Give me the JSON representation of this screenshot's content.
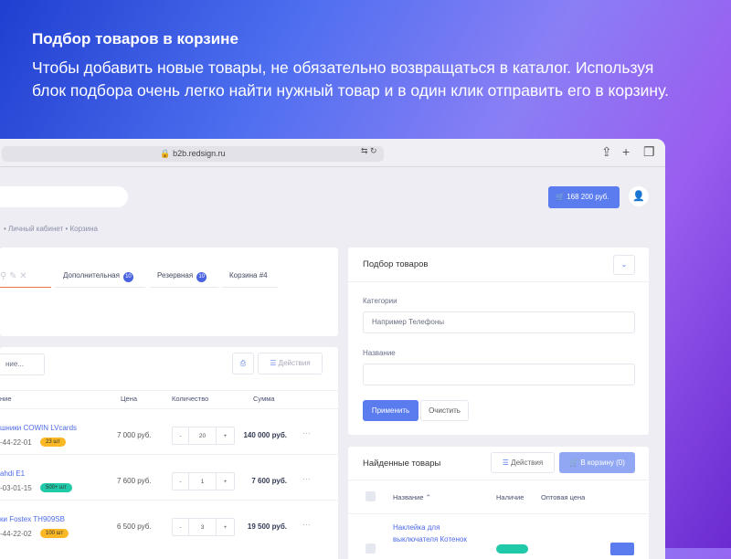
{
  "hero": {
    "title": "Подбор товаров в корзине",
    "text": "Чтобы добавить новые товары, не обязательно возвращаться в каталог. Используя блок подбора очень легко найти нужный товар и в один клик отправить его в корзину."
  },
  "browser": {
    "url": "b2b.redsign.ru"
  },
  "header": {
    "cart_total": "168 200 руб."
  },
  "breadcrumbs": [
    "Личный кабинет",
    "Корзина"
  ],
  "cart_tabs": [
    {
      "label": "Дополнительная",
      "count": "10"
    },
    {
      "label": "Резервная",
      "count": "10"
    },
    {
      "label": "Корзина #4"
    }
  ],
  "cart_table": {
    "search_placeholder": "ние...",
    "actions": "Действия",
    "headers": [
      "ние",
      "Цена",
      "Количество",
      "Сумма"
    ],
    "rows": [
      {
        "name": "шники COWIN LVcards",
        "sku": "-44-22-01",
        "stock": "23 шт",
        "stock_color": "#f9b824",
        "price": "7 000 руб.",
        "qty": "20",
        "sum": "140 000 руб."
      },
      {
        "name": "ahdi E1",
        "sku": "-03-01-15",
        "stock": "500+ шт",
        "stock_color": "#20c9a7",
        "price": "7 600 руб.",
        "qty": "1",
        "sum": "7 600 руб."
      },
      {
        "name": "ки Fostex TH909SB",
        "sku": "-44-22-02",
        "stock": "100 шт",
        "stock_color": "#f9b824",
        "price": "6 500 руб.",
        "qty": "3",
        "sum": "19 500 руб."
      }
    ]
  },
  "picker": {
    "title": "Подбор товаров",
    "category_label": "Категории",
    "category_placeholder": "Например Телефоны",
    "name_label": "Название",
    "apply": "Применить",
    "clear": "Очистить"
  },
  "found": {
    "title": "Найденные товары",
    "actions": "Действия",
    "to_cart": "В корзину (0)",
    "headers": [
      "Название",
      "Наличие",
      "Оптовая цена"
    ],
    "rows": [
      {
        "name": "Наклейка для выключателя Котенок"
      }
    ]
  },
  "colors": {
    "accent": "#5a7cef",
    "badge": "#4a63e0"
  }
}
